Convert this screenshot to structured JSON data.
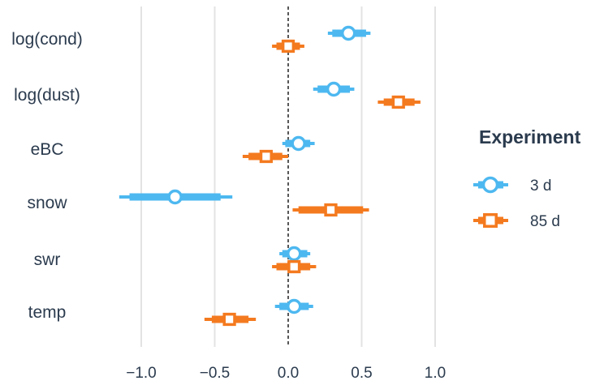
{
  "chart_data": {
    "type": "forest",
    "xlim": [
      -1.25,
      1.05
    ],
    "x_ticks": [
      -1.0,
      -0.5,
      0.0,
      0.5,
      1.0
    ],
    "x_tick_labels": [
      "−1.0",
      "−0.5",
      "0.0",
      "0.5",
      "1.0"
    ],
    "categories": [
      "log(cond)",
      "log(dust)",
      "eBC",
      "snow",
      "swr",
      "temp"
    ],
    "reference_line": 0,
    "grid": true,
    "legend": {
      "title": "Experiment",
      "position": "right"
    },
    "series": [
      {
        "name": "3 d",
        "color": "#4db8f0",
        "marker": "circle",
        "points": [
          {
            "estimate": 0.41,
            "inner": [
              0.3,
              0.53
            ],
            "outer": [
              0.27,
              0.56
            ]
          },
          {
            "estimate": 0.31,
            "inner": [
              0.2,
              0.42
            ],
            "outer": [
              0.17,
              0.45
            ]
          },
          {
            "estimate": 0.07,
            "inner": [
              -0.02,
              0.15
            ],
            "outer": [
              -0.04,
              0.18
            ]
          },
          {
            "estimate": -0.77,
            "inner": [
              -1.08,
              -0.46
            ],
            "outer": [
              -1.15,
              -0.38
            ]
          },
          {
            "estimate": 0.04,
            "inner": [
              -0.04,
              0.13
            ],
            "outer": [
              -0.06,
              0.15
            ]
          },
          {
            "estimate": 0.04,
            "inner": [
              -0.06,
              0.14
            ],
            "outer": [
              -0.09,
              0.17
            ]
          }
        ]
      },
      {
        "name": "85 d",
        "color": "#f47a1f",
        "marker": "square",
        "points": [
          {
            "estimate": 0.0,
            "inner": [
              -0.08,
              0.08
            ],
            "outer": [
              -0.11,
              0.11
            ]
          },
          {
            "estimate": 0.75,
            "inner": [
              0.65,
              0.86
            ],
            "outer": [
              0.61,
              0.9
            ]
          },
          {
            "estimate": -0.15,
            "inner": [
              -0.27,
              -0.04
            ],
            "outer": [
              -0.31,
              0.0
            ]
          },
          {
            "estimate": 0.29,
            "inner": [
              0.07,
              0.51
            ],
            "outer": [
              0.03,
              0.55
            ]
          },
          {
            "estimate": 0.04,
            "inner": [
              -0.08,
              0.15
            ],
            "outer": [
              -0.11,
              0.19
            ]
          },
          {
            "estimate": -0.4,
            "inner": [
              -0.52,
              -0.27
            ],
            "outer": [
              -0.57,
              -0.22
            ]
          }
        ]
      }
    ]
  }
}
